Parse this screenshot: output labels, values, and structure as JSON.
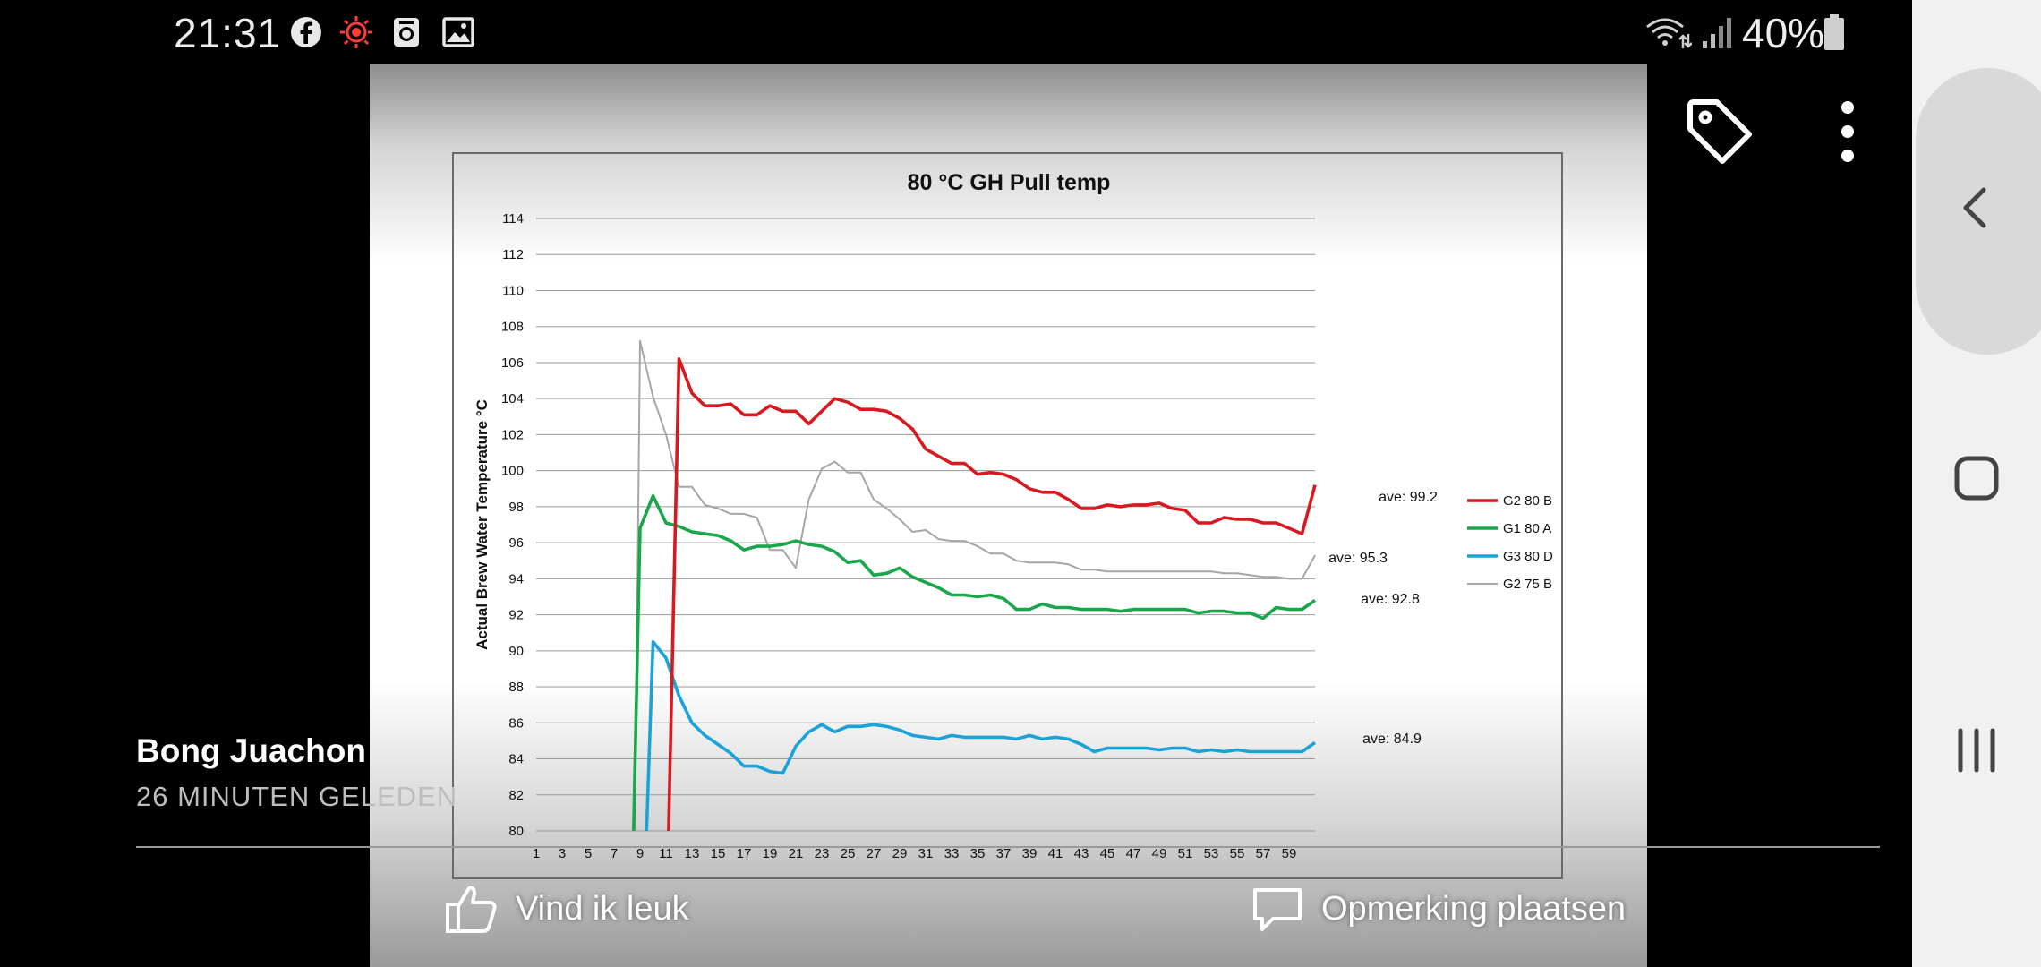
{
  "status_bar": {
    "time": "21:31",
    "battery": "40%",
    "icons": [
      "facebook-icon",
      "red-notification-icon",
      "screen-recorder-icon",
      "gallery-icon",
      "wifi-icon",
      "signal-icon",
      "battery-icon"
    ]
  },
  "post": {
    "author": "Bong Juachon",
    "timestamp": "26 MINUTEN GELEDEN"
  },
  "actions": {
    "like": "Vind ik leuk",
    "comment": "Opmerking plaatsen"
  },
  "photo_controls": {
    "tag_icon": "tag-icon",
    "more_icon": "more-vertical-icon"
  },
  "nav": {
    "buttons": [
      "back-icon",
      "home-icon",
      "recents-icon"
    ]
  },
  "colors": {
    "g2_80_b": "#d71920",
    "g1_80_a": "#1aa64a",
    "g3_80_d": "#1aa3d9",
    "g2_75_b": "#a6a6a6"
  },
  "chart_data": {
    "type": "line",
    "title": "80 °C GH Pull temp",
    "ylabel": "Actual Brew Water Temperature °C",
    "xlabel": "",
    "ylim": [
      80,
      114
    ],
    "yticks": [
      80,
      82,
      84,
      86,
      88,
      90,
      92,
      94,
      96,
      98,
      100,
      102,
      104,
      106,
      108,
      110,
      112,
      114
    ],
    "x_tick_labels": [
      1,
      3,
      5,
      7,
      9,
      11,
      13,
      15,
      17,
      19,
      21,
      23,
      25,
      27,
      29,
      31,
      33,
      35,
      37,
      39,
      41,
      43,
      45,
      47,
      49,
      51,
      53,
      55,
      57,
      59
    ],
    "x_range": [
      1,
      61
    ],
    "grid": true,
    "legend_position": "right",
    "series": [
      {
        "name": "G2 80 B",
        "color": "#d71920",
        "x": [
          11.2,
          12,
          13,
          14,
          15,
          16,
          17,
          18,
          19,
          20,
          21,
          22,
          23,
          24,
          25,
          26,
          27,
          28,
          29,
          30,
          31,
          32,
          33,
          34,
          35,
          36,
          37,
          38,
          39,
          40,
          41,
          42,
          43,
          44,
          45,
          46,
          47,
          48,
          49,
          50,
          51,
          52,
          53,
          54,
          55,
          56,
          57,
          58,
          59,
          60,
          61
        ],
        "y": [
          80,
          106.2,
          104.3,
          103.6,
          103.6,
          103.7,
          103.1,
          103.1,
          103.6,
          103.3,
          103.3,
          102.6,
          103.3,
          104.0,
          103.8,
          103.4,
          103.4,
          103.3,
          102.9,
          102.3,
          101.2,
          100.8,
          100.4,
          100.4,
          99.8,
          99.9,
          99.8,
          99.5,
          99.0,
          98.8,
          98.8,
          98.4,
          97.9,
          97.9,
          98.1,
          98.0,
          98.1,
          98.1,
          98.2,
          97.9,
          97.8,
          97.1,
          97.1,
          97.4,
          97.3,
          97.3,
          97.1,
          97.1,
          96.8,
          96.5,
          99.2
        ],
        "annotation": "ave: 99.2"
      },
      {
        "name": "G1 80 A",
        "color": "#1aa64a",
        "x": [
          8.5,
          9,
          10,
          11,
          12,
          13,
          14,
          15,
          16,
          17,
          18,
          19,
          20,
          21,
          22,
          23,
          24,
          25,
          26,
          27,
          28,
          29,
          30,
          31,
          32,
          33,
          34,
          35,
          36,
          37,
          38,
          39,
          40,
          41,
          42,
          43,
          44,
          45,
          46,
          47,
          48,
          49,
          50,
          51,
          52,
          53,
          54,
          55,
          56,
          57,
          58,
          59,
          60,
          61
        ],
        "y": [
          80,
          96.8,
          98.6,
          97.1,
          96.9,
          96.6,
          96.5,
          96.4,
          96.1,
          95.6,
          95.8,
          95.8,
          95.9,
          96.1,
          95.9,
          95.8,
          95.5,
          94.9,
          95.0,
          94.2,
          94.3,
          94.6,
          94.1,
          93.8,
          93.5,
          93.1,
          93.1,
          93.0,
          93.1,
          92.9,
          92.3,
          92.3,
          92.6,
          92.4,
          92.4,
          92.3,
          92.3,
          92.3,
          92.2,
          92.3,
          92.3,
          92.3,
          92.3,
          92.3,
          92.1,
          92.2,
          92.2,
          92.1,
          92.1,
          91.8,
          92.4,
          92.3,
          92.3,
          92.8
        ],
        "annotation": "ave: 92.8"
      },
      {
        "name": "G3 80 D",
        "color": "#1aa3d9",
        "x": [
          9.5,
          10,
          11,
          12,
          13,
          14,
          15,
          16,
          17,
          18,
          19,
          20,
          21,
          22,
          23,
          24,
          25,
          26,
          27,
          28,
          29,
          30,
          31,
          32,
          33,
          34,
          35,
          36,
          37,
          38,
          39,
          40,
          41,
          42,
          43,
          44,
          45,
          46,
          47,
          48,
          49,
          50,
          51,
          52,
          53,
          54,
          55,
          56,
          57,
          58,
          59,
          60,
          61
        ],
        "y": [
          80,
          90.5,
          89.6,
          87.5,
          86.0,
          85.3,
          84.8,
          84.3,
          83.6,
          83.6,
          83.3,
          83.2,
          84.7,
          85.5,
          85.9,
          85.5,
          85.8,
          85.8,
          85.9,
          85.8,
          85.6,
          85.3,
          85.2,
          85.1,
          85.3,
          85.2,
          85.2,
          85.2,
          85.2,
          85.1,
          85.3,
          85.1,
          85.2,
          85.1,
          84.8,
          84.4,
          84.6,
          84.6,
          84.6,
          84.6,
          84.5,
          84.6,
          84.6,
          84.4,
          84.5,
          84.4,
          84.5,
          84.4,
          84.4,
          84.4,
          84.4,
          84.4,
          84.9
        ],
        "annotation": "ave: 84.9"
      },
      {
        "name": "G2 75 B",
        "color": "#a6a6a6",
        "x": [
          8.6,
          9,
          10,
          11,
          12,
          13,
          14,
          15,
          16,
          17,
          18,
          19,
          20,
          21,
          22,
          23,
          24,
          25,
          26,
          27,
          28,
          29,
          30,
          31,
          32,
          33,
          34,
          35,
          36,
          37,
          38,
          39,
          40,
          41,
          42,
          43,
          44,
          45,
          46,
          47,
          48,
          49,
          50,
          51,
          52,
          53,
          54,
          55,
          56,
          57,
          58,
          59,
          60,
          61
        ],
        "y": [
          80,
          107.2,
          104.1,
          102.0,
          99.1,
          99.1,
          98.1,
          97.9,
          97.6,
          97.6,
          97.4,
          95.6,
          95.6,
          94.6,
          98.4,
          100.1,
          100.5,
          99.9,
          99.9,
          98.4,
          97.9,
          97.3,
          96.6,
          96.7,
          96.2,
          96.1,
          96.1,
          95.8,
          95.4,
          95.4,
          95.0,
          94.9,
          94.9,
          94.9,
          94.8,
          94.5,
          94.5,
          94.4,
          94.4,
          94.4,
          94.4,
          94.4,
          94.4,
          94.4,
          94.4,
          94.4,
          94.3,
          94.3,
          94.2,
          94.1,
          94.1,
          94.0,
          94.0,
          95.3
        ],
        "annotation": "ave: 95.3"
      }
    ]
  }
}
